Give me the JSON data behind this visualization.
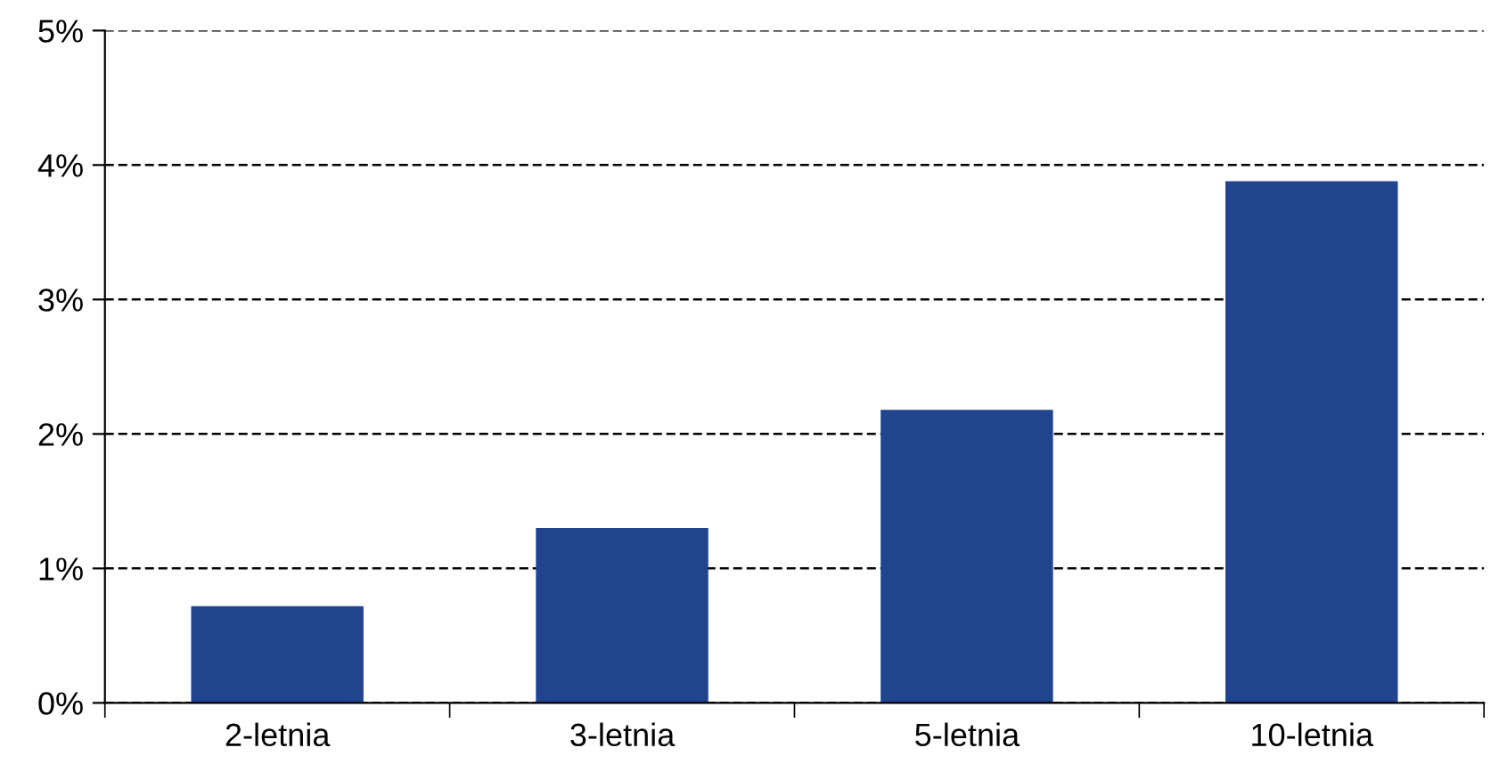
{
  "chart_data": {
    "type": "bar",
    "categories": [
      "2-letnia",
      "3-letnia",
      "5-letnia",
      "10-letnia"
    ],
    "values": [
      0.72,
      1.3,
      2.18,
      3.88
    ],
    "color": "#21448f",
    "ylim": [
      0,
      5
    ],
    "yticks": [
      {
        "value": 0,
        "label": "0%"
      },
      {
        "value": 1,
        "label": "1%"
      },
      {
        "value": 2,
        "label": "2%"
      },
      {
        "value": 3,
        "label": "3%"
      },
      {
        "value": 4,
        "label": "4%"
      },
      {
        "value": 5,
        "label": "5%"
      }
    ],
    "grid": "y",
    "line_style": "dashed",
    "legend": false
  }
}
